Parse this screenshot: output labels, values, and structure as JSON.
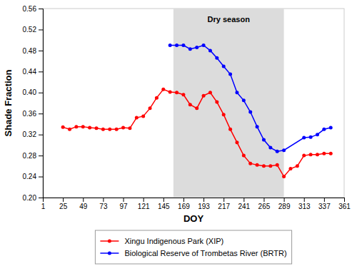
{
  "chart_data": {
    "type": "line",
    "xlabel": "DOY",
    "ylabel": "Shade Fraction",
    "xlim": [
      1,
      361
    ],
    "ylim": [
      0.2,
      0.56
    ],
    "xticks": [
      1,
      25,
      49,
      73,
      97,
      121,
      145,
      169,
      193,
      217,
      241,
      265,
      289,
      313,
      337,
      361
    ],
    "yticks": [
      {
        "value": 0.2,
        "label": "0.20"
      },
      0.24,
      0.28,
      0.32,
      0.36,
      {
        "value": 0.4,
        "label": "0.40"
      },
      0.44,
      0.48,
      0.52,
      0.56
    ],
    "grid": false,
    "legend": "bottom",
    "shaded_regions": [
      {
        "x0": 157,
        "x1": 289,
        "color": "#DCDCDC",
        "label": "Dry season",
        "label_x": 223,
        "label_y": 0.545
      }
    ],
    "series": [
      {
        "name": "Xingu Indigenous Park (XIP)",
        "color": "#FF0000",
        "marker": "circle",
        "line_style": "solid",
        "x": [
          25,
          33,
          41,
          49,
          57,
          65,
          73,
          81,
          89,
          97,
          105,
          113,
          121,
          129,
          137,
          145,
          153,
          161,
          169,
          177,
          185,
          193,
          201,
          209,
          217,
          225,
          233,
          241,
          249,
          257,
          265,
          273,
          281,
          289,
          297,
          305,
          313,
          321,
          329,
          337,
          345
        ],
        "values": [
          0.334,
          0.33,
          0.335,
          0.335,
          0.333,
          0.332,
          0.33,
          0.33,
          0.33,
          0.333,
          0.332,
          0.352,
          0.355,
          0.37,
          0.39,
          0.406,
          0.401,
          0.4,
          0.396,
          0.377,
          0.37,
          0.394,
          0.4,
          0.382,
          0.358,
          0.33,
          0.305,
          0.28,
          0.265,
          0.262,
          0.26,
          0.26,
          0.262,
          0.24,
          0.255,
          0.26,
          0.28,
          0.282,
          0.282,
          0.284,
          0.284
        ]
      },
      {
        "name": "Biological Reserve of Trombetas River (BRTR)",
        "color": "#0000FF",
        "marker": "circle",
        "line_style": "solid",
        "x": [
          153,
          161,
          169,
          177,
          185,
          193,
          201,
          209,
          217,
          225,
          233,
          241,
          249,
          257,
          265,
          273,
          281,
          289,
          313,
          321,
          329,
          337,
          345
        ],
        "values": [
          0.49,
          0.49,
          0.49,
          0.483,
          0.486,
          0.49,
          0.48,
          0.466,
          0.45,
          0.435,
          0.4,
          0.385,
          0.363,
          0.335,
          0.31,
          0.295,
          0.288,
          0.29,
          0.314,
          0.315,
          0.32,
          0.33,
          0.333
        ]
      }
    ]
  }
}
